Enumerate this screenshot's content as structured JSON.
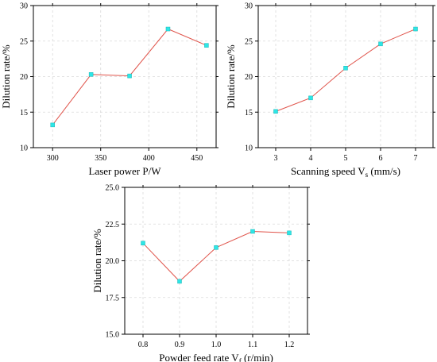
{
  "chart_data": [
    {
      "type": "line",
      "x": [
        300,
        340,
        380,
        420,
        460
      ],
      "y": [
        13.2,
        20.3,
        20.1,
        26.7,
        24.4
      ],
      "xticks": [
        300,
        350,
        400,
        450
      ],
      "xlim": [
        280,
        470
      ],
      "ylim": [
        10,
        30
      ],
      "yticks": [
        10,
        15,
        20,
        25,
        30
      ],
      "xlabel": "Laser power P/W",
      "xlabel_sub": "",
      "xlabel_after": "",
      "ylabel": "Dilution rate/%",
      "line_color": "#e0534a",
      "marker_color": "#2ee6e6",
      "grid": true
    },
    {
      "type": "line",
      "x": [
        3,
        4,
        5,
        6,
        7
      ],
      "y": [
        15.1,
        17.0,
        21.2,
        24.6,
        26.7
      ],
      "xticks": [
        3,
        4,
        5,
        6,
        7
      ],
      "xlim": [
        2.5,
        7.5
      ],
      "ylim": [
        10,
        30
      ],
      "yticks": [
        10,
        15,
        20,
        25,
        30
      ],
      "xlabel": "Scanning speed V",
      "xlabel_sub": "s",
      "xlabel_after": " (mm/s)",
      "ylabel": "Dilution rate/%",
      "line_color": "#e0534a",
      "marker_color": "#2ee6e6",
      "grid": true
    },
    {
      "type": "line",
      "x": [
        0.8,
        0.9,
        1.0,
        1.1,
        1.2
      ],
      "y": [
        21.2,
        18.6,
        20.9,
        22.0,
        21.9
      ],
      "xticks": [
        0.8,
        0.9,
        1.0,
        1.1,
        1.2
      ],
      "xlim": [
        0.75,
        1.25
      ],
      "ylim": [
        15.0,
        25.0
      ],
      "yticks": [
        15.0,
        17.5,
        20.0,
        22.5,
        25.0
      ],
      "xlabel": "Powder feed rate V",
      "xlabel_sub": "f",
      "xlabel_after": " (r/min)",
      "ylabel": "Dilution rate/%",
      "line_color": "#e0534a",
      "marker_color": "#2ee6e6",
      "grid": true
    }
  ]
}
